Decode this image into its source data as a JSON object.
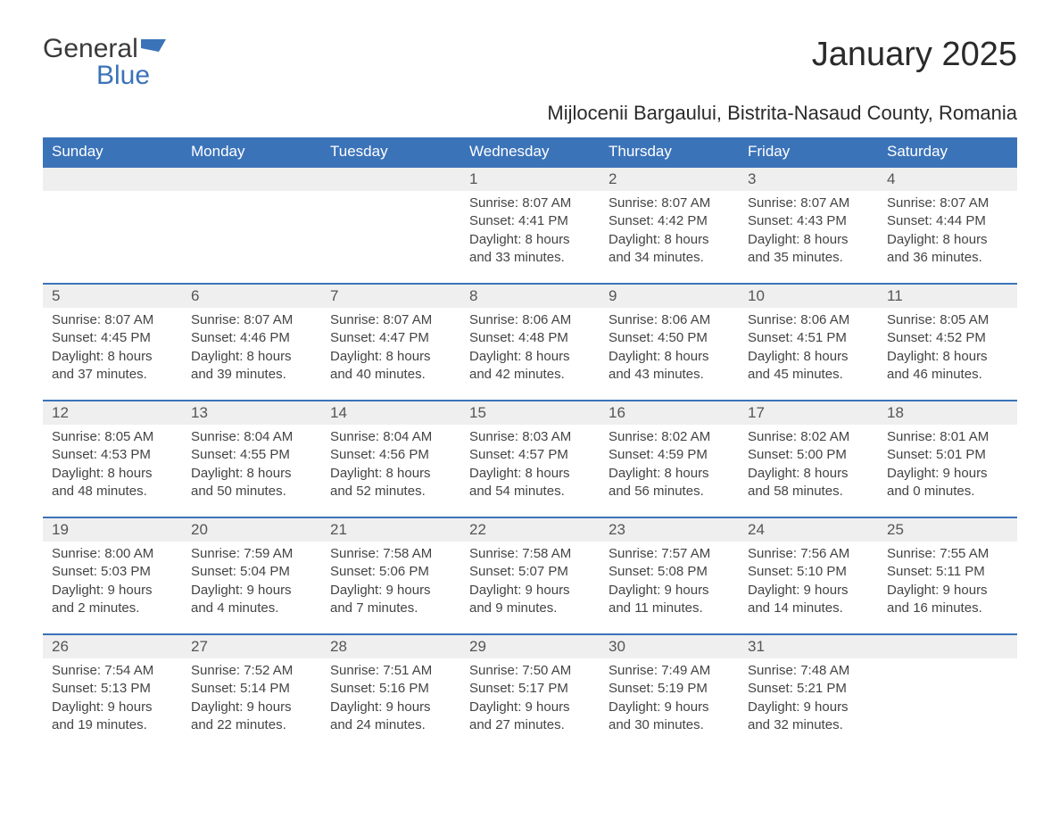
{
  "brand": {
    "part1": "General",
    "part2": "Blue",
    "accent_color": "#3b73b9"
  },
  "title": "January 2025",
  "location": "Mijlocenii Bargaului, Bistrita-Nasaud County, Romania",
  "colors": {
    "header_bg": "#3b73b9",
    "header_text": "#ffffff",
    "daynum_bg": "#efefef",
    "body_text": "#444444",
    "page_bg": "#ffffff"
  },
  "typography": {
    "title_size_pt": 28,
    "subtitle_size_pt": 16,
    "header_size_pt": 13,
    "cell_size_pt": 11
  },
  "weekdays": [
    "Sunday",
    "Monday",
    "Tuesday",
    "Wednesday",
    "Thursday",
    "Friday",
    "Saturday"
  ],
  "weeks": [
    [
      null,
      null,
      null,
      {
        "n": "1",
        "sunrise": "Sunrise: 8:07 AM",
        "sunset": "Sunset: 4:41 PM",
        "d1": "Daylight: 8 hours",
        "d2": "and 33 minutes."
      },
      {
        "n": "2",
        "sunrise": "Sunrise: 8:07 AM",
        "sunset": "Sunset: 4:42 PM",
        "d1": "Daylight: 8 hours",
        "d2": "and 34 minutes."
      },
      {
        "n": "3",
        "sunrise": "Sunrise: 8:07 AM",
        "sunset": "Sunset: 4:43 PM",
        "d1": "Daylight: 8 hours",
        "d2": "and 35 minutes."
      },
      {
        "n": "4",
        "sunrise": "Sunrise: 8:07 AM",
        "sunset": "Sunset: 4:44 PM",
        "d1": "Daylight: 8 hours",
        "d2": "and 36 minutes."
      }
    ],
    [
      {
        "n": "5",
        "sunrise": "Sunrise: 8:07 AM",
        "sunset": "Sunset: 4:45 PM",
        "d1": "Daylight: 8 hours",
        "d2": "and 37 minutes."
      },
      {
        "n": "6",
        "sunrise": "Sunrise: 8:07 AM",
        "sunset": "Sunset: 4:46 PM",
        "d1": "Daylight: 8 hours",
        "d2": "and 39 minutes."
      },
      {
        "n": "7",
        "sunrise": "Sunrise: 8:07 AM",
        "sunset": "Sunset: 4:47 PM",
        "d1": "Daylight: 8 hours",
        "d2": "and 40 minutes."
      },
      {
        "n": "8",
        "sunrise": "Sunrise: 8:06 AM",
        "sunset": "Sunset: 4:48 PM",
        "d1": "Daylight: 8 hours",
        "d2": "and 42 minutes."
      },
      {
        "n": "9",
        "sunrise": "Sunrise: 8:06 AM",
        "sunset": "Sunset: 4:50 PM",
        "d1": "Daylight: 8 hours",
        "d2": "and 43 minutes."
      },
      {
        "n": "10",
        "sunrise": "Sunrise: 8:06 AM",
        "sunset": "Sunset: 4:51 PM",
        "d1": "Daylight: 8 hours",
        "d2": "and 45 minutes."
      },
      {
        "n": "11",
        "sunrise": "Sunrise: 8:05 AM",
        "sunset": "Sunset: 4:52 PM",
        "d1": "Daylight: 8 hours",
        "d2": "and 46 minutes."
      }
    ],
    [
      {
        "n": "12",
        "sunrise": "Sunrise: 8:05 AM",
        "sunset": "Sunset: 4:53 PM",
        "d1": "Daylight: 8 hours",
        "d2": "and 48 minutes."
      },
      {
        "n": "13",
        "sunrise": "Sunrise: 8:04 AM",
        "sunset": "Sunset: 4:55 PM",
        "d1": "Daylight: 8 hours",
        "d2": "and 50 minutes."
      },
      {
        "n": "14",
        "sunrise": "Sunrise: 8:04 AM",
        "sunset": "Sunset: 4:56 PM",
        "d1": "Daylight: 8 hours",
        "d2": "and 52 minutes."
      },
      {
        "n": "15",
        "sunrise": "Sunrise: 8:03 AM",
        "sunset": "Sunset: 4:57 PM",
        "d1": "Daylight: 8 hours",
        "d2": "and 54 minutes."
      },
      {
        "n": "16",
        "sunrise": "Sunrise: 8:02 AM",
        "sunset": "Sunset: 4:59 PM",
        "d1": "Daylight: 8 hours",
        "d2": "and 56 minutes."
      },
      {
        "n": "17",
        "sunrise": "Sunrise: 8:02 AM",
        "sunset": "Sunset: 5:00 PM",
        "d1": "Daylight: 8 hours",
        "d2": "and 58 minutes."
      },
      {
        "n": "18",
        "sunrise": "Sunrise: 8:01 AM",
        "sunset": "Sunset: 5:01 PM",
        "d1": "Daylight: 9 hours",
        "d2": "and 0 minutes."
      }
    ],
    [
      {
        "n": "19",
        "sunrise": "Sunrise: 8:00 AM",
        "sunset": "Sunset: 5:03 PM",
        "d1": "Daylight: 9 hours",
        "d2": "and 2 minutes."
      },
      {
        "n": "20",
        "sunrise": "Sunrise: 7:59 AM",
        "sunset": "Sunset: 5:04 PM",
        "d1": "Daylight: 9 hours",
        "d2": "and 4 minutes."
      },
      {
        "n": "21",
        "sunrise": "Sunrise: 7:58 AM",
        "sunset": "Sunset: 5:06 PM",
        "d1": "Daylight: 9 hours",
        "d2": "and 7 minutes."
      },
      {
        "n": "22",
        "sunrise": "Sunrise: 7:58 AM",
        "sunset": "Sunset: 5:07 PM",
        "d1": "Daylight: 9 hours",
        "d2": "and 9 minutes."
      },
      {
        "n": "23",
        "sunrise": "Sunrise: 7:57 AM",
        "sunset": "Sunset: 5:08 PM",
        "d1": "Daylight: 9 hours",
        "d2": "and 11 minutes."
      },
      {
        "n": "24",
        "sunrise": "Sunrise: 7:56 AM",
        "sunset": "Sunset: 5:10 PM",
        "d1": "Daylight: 9 hours",
        "d2": "and 14 minutes."
      },
      {
        "n": "25",
        "sunrise": "Sunrise: 7:55 AM",
        "sunset": "Sunset: 5:11 PM",
        "d1": "Daylight: 9 hours",
        "d2": "and 16 minutes."
      }
    ],
    [
      {
        "n": "26",
        "sunrise": "Sunrise: 7:54 AM",
        "sunset": "Sunset: 5:13 PM",
        "d1": "Daylight: 9 hours",
        "d2": "and 19 minutes."
      },
      {
        "n": "27",
        "sunrise": "Sunrise: 7:52 AM",
        "sunset": "Sunset: 5:14 PM",
        "d1": "Daylight: 9 hours",
        "d2": "and 22 minutes."
      },
      {
        "n": "28",
        "sunrise": "Sunrise: 7:51 AM",
        "sunset": "Sunset: 5:16 PM",
        "d1": "Daylight: 9 hours",
        "d2": "and 24 minutes."
      },
      {
        "n": "29",
        "sunrise": "Sunrise: 7:50 AM",
        "sunset": "Sunset: 5:17 PM",
        "d1": "Daylight: 9 hours",
        "d2": "and 27 minutes."
      },
      {
        "n": "30",
        "sunrise": "Sunrise: 7:49 AM",
        "sunset": "Sunset: 5:19 PM",
        "d1": "Daylight: 9 hours",
        "d2": "and 30 minutes."
      },
      {
        "n": "31",
        "sunrise": "Sunrise: 7:48 AM",
        "sunset": "Sunset: 5:21 PM",
        "d1": "Daylight: 9 hours",
        "d2": "and 32 minutes."
      },
      null
    ]
  ]
}
